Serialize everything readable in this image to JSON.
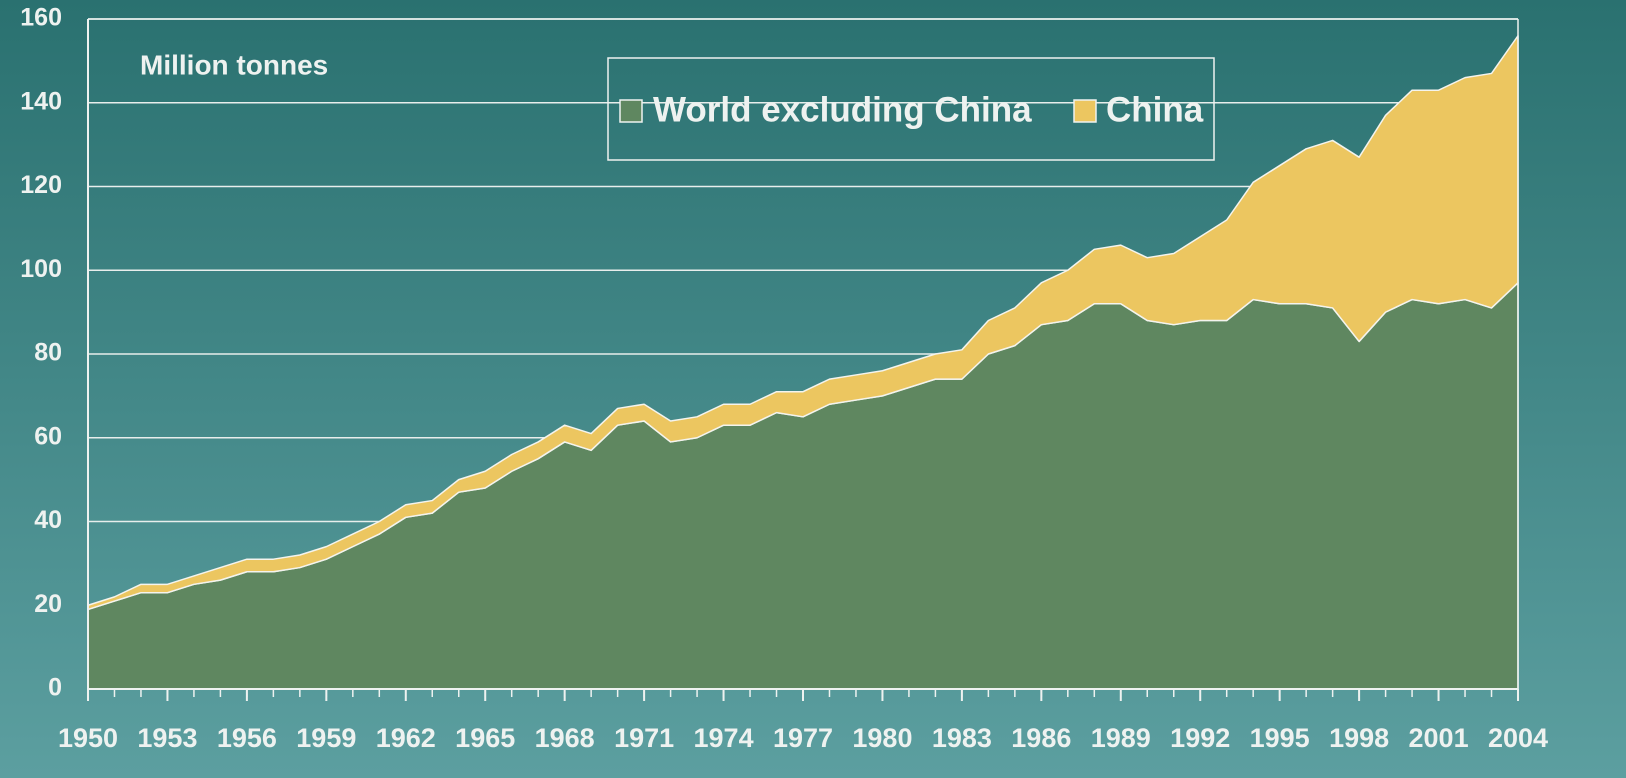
{
  "chart_data": {
    "type": "stacked_area",
    "annotation": "Million tonnes",
    "x": [
      1950,
      1951,
      1952,
      1953,
      1954,
      1955,
      1956,
      1957,
      1958,
      1959,
      1960,
      1961,
      1962,
      1963,
      1964,
      1965,
      1966,
      1967,
      1968,
      1969,
      1970,
      1971,
      1972,
      1973,
      1974,
      1975,
      1976,
      1977,
      1978,
      1979,
      1980,
      1981,
      1982,
      1983,
      1984,
      1985,
      1986,
      1987,
      1988,
      1989,
      1990,
      1991,
      1992,
      1993,
      1994,
      1995,
      1996,
      1997,
      1998,
      1999,
      2000,
      2001,
      2002,
      2003,
      2004
    ],
    "series": [
      {
        "name": "World excluding China",
        "color": "#5f8760",
        "values": [
          19,
          21,
          23,
          23,
          25,
          26,
          28,
          28,
          29,
          31,
          34,
          37,
          41,
          42,
          47,
          48,
          52,
          55,
          59,
          57,
          63,
          64,
          59,
          60,
          63,
          63,
          66,
          65,
          68,
          69,
          70,
          72,
          74,
          74,
          80,
          82,
          87,
          88,
          92,
          92,
          88,
          87,
          88,
          88,
          93,
          92,
          92,
          91,
          83,
          90,
          93,
          92,
          93,
          91,
          97
        ]
      },
      {
        "name": "China",
        "color": "#ecc660",
        "values": [
          1,
          1,
          2,
          2,
          2,
          3,
          3,
          3,
          3,
          3,
          3,
          3,
          3,
          3,
          3,
          4,
          4,
          4,
          4,
          4,
          4,
          4,
          5,
          5,
          5,
          5,
          5,
          6,
          6,
          6,
          6,
          6,
          6,
          7,
          8,
          9,
          10,
          12,
          13,
          14,
          15,
          17,
          20,
          24,
          28,
          33,
          37,
          40,
          44,
          47,
          50,
          51,
          53,
          56,
          59
        ]
      }
    ],
    "xlim": [
      1950,
      2004
    ],
    "xticks": [
      1950,
      1953,
      1956,
      1959,
      1962,
      1965,
      1968,
      1971,
      1974,
      1977,
      1980,
      1983,
      1986,
      1989,
      1992,
      1995,
      1998,
      2001,
      2004
    ],
    "ylim": [
      0,
      160
    ],
    "yticks": [
      0,
      20,
      40,
      60,
      80,
      100,
      120,
      140,
      160
    ],
    "grid": true
  }
}
